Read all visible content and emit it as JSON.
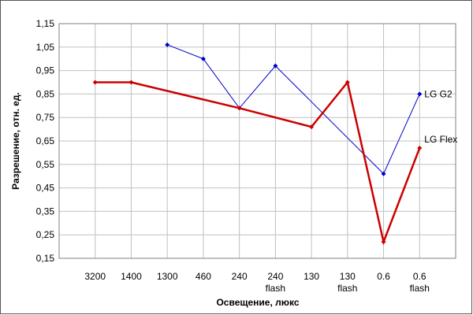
{
  "chart_data": {
    "type": "line",
    "xlabel": "Освещение, люкс",
    "ylabel": "Разрешение, отн. ед.",
    "categories": [
      "3200",
      "1400",
      "1300",
      "460",
      "240",
      "240 flash",
      "130",
      "130 flash",
      "0.6",
      "0.6 flash"
    ],
    "series": [
      {
        "name": "LG G2",
        "color": "#0000cc",
        "values": [
          null,
          null,
          1.06,
          1.0,
          0.79,
          0.97,
          null,
          null,
          0.51,
          0.85
        ]
      },
      {
        "name": "LG Flex",
        "color": "#cc0000",
        "values": [
          0.9,
          0.9,
          null,
          null,
          0.79,
          null,
          0.71,
          0.9,
          0.22,
          0.62
        ]
      }
    ],
    "span_gaps": true,
    "ylim": [
      0.15,
      1.15
    ],
    "yticks": [
      {
        "value": 0.15,
        "label": "0,15"
      },
      {
        "value": 0.25,
        "label": "0,25"
      },
      {
        "value": 0.35,
        "label": "0,35"
      },
      {
        "value": 0.45,
        "label": "0,45"
      },
      {
        "value": 0.55,
        "label": "0,55"
      },
      {
        "value": 0.65,
        "label": "0,65"
      },
      {
        "value": 0.75,
        "label": "0,75"
      },
      {
        "value": 0.85,
        "label": "0,85"
      },
      {
        "value": 0.95,
        "label": "0,95"
      },
      {
        "value": 1.05,
        "label": "1,05"
      },
      {
        "value": 1.15,
        "label": "1,15"
      }
    ],
    "grid": true
  }
}
